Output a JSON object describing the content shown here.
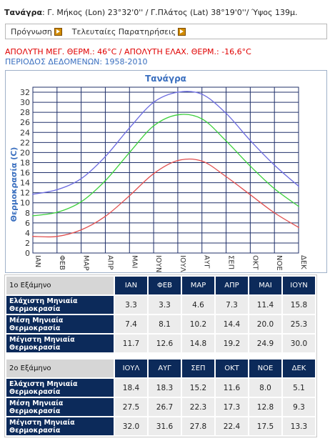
{
  "station": {
    "name": "Τανάγρα",
    "details": "Γ. Μήκος (Lon) 23°32'0'' / Γ.Πλάτος (Lat) 38°19'0''/ Ύψος 139μ."
  },
  "links": {
    "forecast": "Πρόγνωση",
    "observations": "Τελευταίες Παρατηρήσεις"
  },
  "records_line": "ΑΠΟΛΥΤΗ ΜΕΓ. ΘΕΡΜ.: 46°C / ΑΠΟΛΥΤΗ ΕΛΑΧ. ΘΕΡΜ.: -16,6°C",
  "period_line": "ΠΕΡΙΟΔΟΣ ΔΕΔΟΜΕΝΩΝ: 1958-2010",
  "colors": {
    "max": "#6a6ae0",
    "mean": "#3cd03c",
    "min": "#e05050",
    "header_bg": "#0c2a5a",
    "records": "#e00000",
    "period": "#3a6fbf"
  },
  "chart_data": {
    "type": "line",
    "title": "Τανάγρα",
    "ylabel": "Θερμοκρασία (C)",
    "xlabel": "",
    "ylim": [
      0,
      33
    ],
    "yticks": [
      0,
      2,
      4,
      6,
      8,
      10,
      12,
      14,
      16,
      18,
      20,
      22,
      24,
      26,
      28,
      30,
      32
    ],
    "categories": [
      "ΙΑΝ",
      "ΦΕΒ",
      "ΜΑΡ",
      "ΑΠΡ",
      "ΜΑΙ",
      "ΙΟΥΝ",
      "ΙΟΥΛ",
      "ΑΥΓ",
      "ΣΕΠ",
      "ΟΚΤ",
      "ΝΟΕ",
      "ΔΕΚ"
    ],
    "grid": true,
    "series": [
      {
        "key": "max",
        "values": [
          11.7,
          12.6,
          14.8,
          19.2,
          24.9,
          30.0,
          32.0,
          31.6,
          27.8,
          22.4,
          17.5,
          13.3
        ]
      },
      {
        "key": "mean",
        "values": [
          7.4,
          8.1,
          10.2,
          14.4,
          20.0,
          25.3,
          27.5,
          26.7,
          22.3,
          17.3,
          12.8,
          9.3
        ]
      },
      {
        "key": "min",
        "values": [
          3.3,
          3.3,
          4.6,
          7.3,
          11.4,
          15.8,
          18.4,
          18.3,
          15.2,
          11.6,
          8.0,
          5.1
        ]
      }
    ]
  },
  "table": {
    "semesters": [
      {
        "label": "1ο Εξάμηνο",
        "months": [
          "ΙΑΝ",
          "ΦΕΒ",
          "ΜΑΡ",
          "ΑΠΡ",
          "ΜΑΙ",
          "ΙΟΥΝ"
        ],
        "rows": [
          {
            "label": "Ελάχιστη Μηνιαία Θερμοκρασία",
            "values": [
              "3.3",
              "3.3",
              "4.6",
              "7.3",
              "11.4",
              "15.8"
            ]
          },
          {
            "label": "Μέση Μηνιαία Θερμοκρασία",
            "values": [
              "7.4",
              "8.1",
              "10.2",
              "14.4",
              "20.0",
              "25.3"
            ]
          },
          {
            "label": "Μέγιστη Μηνιαία Θερμοκρασία",
            "values": [
              "11.7",
              "12.6",
              "14.8",
              "19.2",
              "24.9",
              "30.0"
            ]
          }
        ]
      },
      {
        "label": "2ο Εξάμηνο",
        "months": [
          "ΙΟΥΛ",
          "ΑΥΓ",
          "ΣΕΠ",
          "ΟΚΤ",
          "ΝΟΕ",
          "ΔΕΚ"
        ],
        "rows": [
          {
            "label": "Ελάχιστη Μηνιαία Θερμοκρασία",
            "values": [
              "18.4",
              "18.3",
              "15.2",
              "11.6",
              "8.0",
              "5.1"
            ]
          },
          {
            "label": "Μέση Μηνιαία Θερμοκρασία",
            "values": [
              "27.5",
              "26.7",
              "22.3",
              "17.3",
              "12.8",
              "9.3"
            ]
          },
          {
            "label": "Μέγιστη Μηνιαία Θερμοκρασία",
            "values": [
              "32.0",
              "31.6",
              "27.8",
              "22.4",
              "17.5",
              "13.3"
            ]
          }
        ]
      }
    ]
  }
}
